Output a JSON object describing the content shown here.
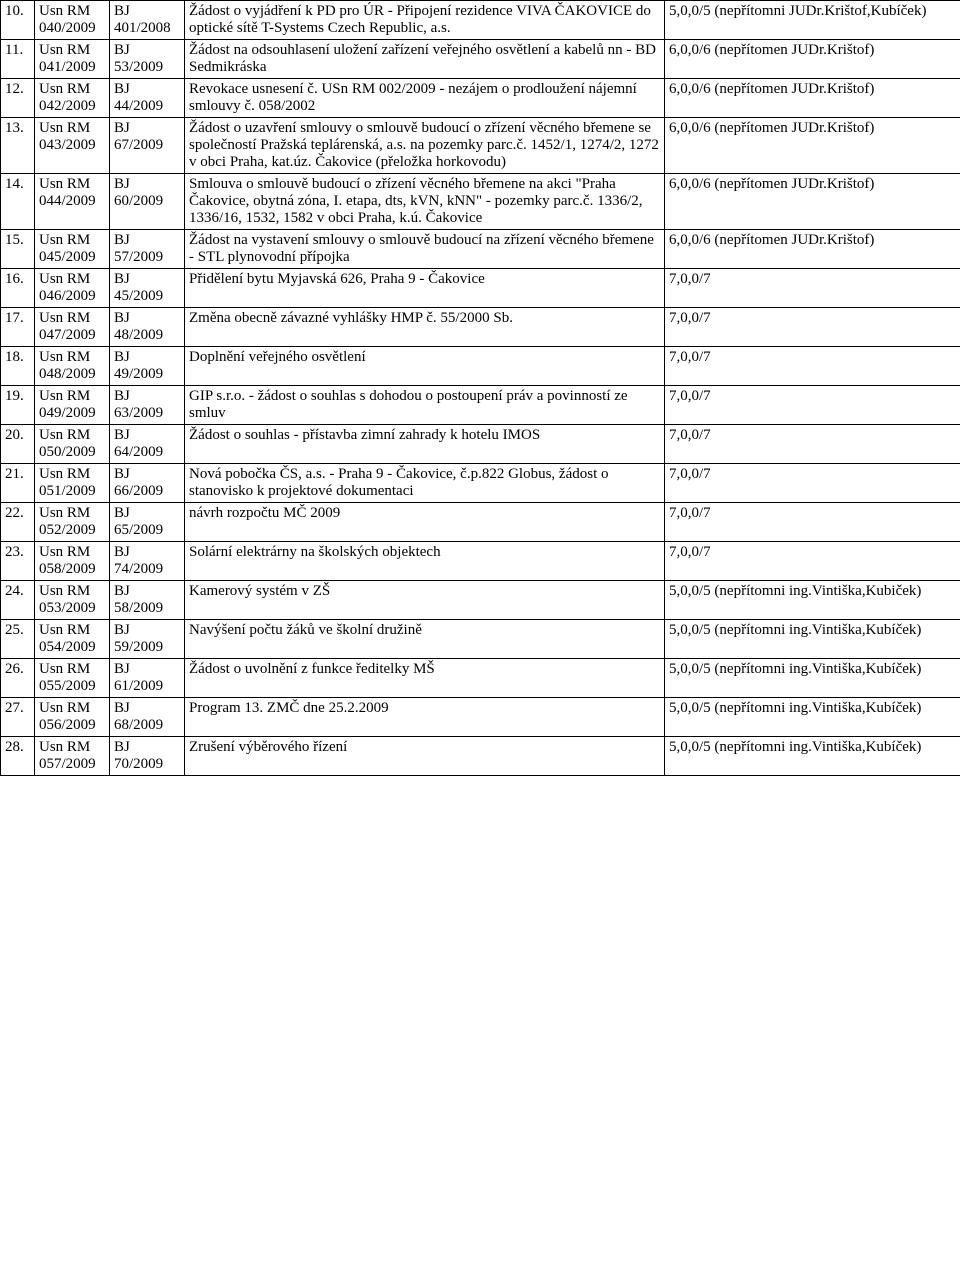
{
  "rows": [
    {
      "n": "10.",
      "usn1": "Usn RM",
      "usn2": "040/2009",
      "bj1": "BJ",
      "bj2": "401/2008",
      "desc": "Žádost o vyjádření k PD pro ÚR - Připojení rezidence VIVA ČAKOVICE do optické sítě T-Systems Czech Republic, a.s.",
      "res": "5,0,0/5 (nepřítomni JUDr.Krištof,Kubíček)"
    },
    {
      "n": "11.",
      "usn1": "Usn RM",
      "usn2": "041/2009",
      "bj1": "BJ",
      "bj2": "53/2009",
      "desc": "Žádost na odsouhlasení uložení zařízení veřejného osvětlení a kabelů nn - BD Sedmikráska",
      "res": "6,0,0/6 (nepřítomen JUDr.Krištof)"
    },
    {
      "n": "12.",
      "usn1": "Usn RM",
      "usn2": "042/2009",
      "bj1": "BJ",
      "bj2": "44/2009",
      "desc": "Revokace usnesení č. USn RM 002/2009 - nezájem o prodloužení nájemní smlouvy č. 058/2002",
      "res": "6,0,0/6 (nepřítomen JUDr.Krištof)"
    },
    {
      "n": "13.",
      "usn1": "Usn RM",
      "usn2": "043/2009",
      "bj1": "BJ",
      "bj2": "67/2009",
      "desc": "Žádost o uzavření smlouvy o smlouvě budoucí o zřízení věcného břemene se společností Pražská teplárenská, a.s. na pozemky parc.č. 1452/1, 1274/2, 1272 v obci Praha, kat.úz. Čakovice (přeložka horkovodu)",
      "res": "6,0,0/6 (nepřítomen JUDr.Krištof)"
    },
    {
      "n": "14.",
      "usn1": "Usn RM",
      "usn2": "044/2009",
      "bj1": "BJ",
      "bj2": "60/2009",
      "desc": "Smlouva o smlouvě budoucí o zřízení věcného břemene na akci \"Praha Čakovice, obytná zóna, I. etapa, dts, kVN, kNN\" - pozemky parc.č. 1336/2, 1336/16, 1532, 1582 v obci Praha, k.ú. Čakovice",
      "res": "6,0,0/6 (nepřítomen JUDr.Krištof)"
    },
    {
      "n": "15.",
      "usn1": "Usn RM",
      "usn2": "045/2009",
      "bj1": "BJ",
      "bj2": "57/2009",
      "desc": "Žádost na vystavení smlouvy o smlouvě budoucí na zřízení věcného břemene - STL plynovodní přípojka",
      "res": "6,0,0/6 (nepřítomen JUDr.Krištof)"
    },
    {
      "n": "16.",
      "usn1": "Usn RM",
      "usn2": "046/2009",
      "bj1": "BJ",
      "bj2": "45/2009",
      "desc": "Přidělení bytu Myjavská 626, Praha 9 - Čakovice",
      "res": "7,0,0/7"
    },
    {
      "n": "17.",
      "usn1": "Usn RM",
      "usn2": "047/2009",
      "bj1": "BJ",
      "bj2": "48/2009",
      "desc": "Změna obecně závazné vyhlášky HMP č. 55/2000 Sb.",
      "res": "7,0,0/7"
    },
    {
      "n": "18.",
      "usn1": "Usn RM",
      "usn2": "048/2009",
      "bj1": "BJ",
      "bj2": "49/2009",
      "desc": "Doplnění veřejného osvětlení",
      "res": "7,0,0/7"
    },
    {
      "n": "19.",
      "usn1": "Usn RM",
      "usn2": "049/2009",
      "bj1": "BJ",
      "bj2": "63/2009",
      "desc": "GIP s.r.o. - žádost o souhlas s dohodou o postoupení práv a povinností ze smluv",
      "res": "7,0,0/7"
    },
    {
      "n": "20.",
      "usn1": "Usn RM",
      "usn2": "050/2009",
      "bj1": "BJ",
      "bj2": "64/2009",
      "desc": "Žádost o souhlas - přístavba zimní zahrady k hotelu IMOS",
      "res": "7,0,0/7"
    },
    {
      "n": "21.",
      "usn1": "Usn RM",
      "usn2": "051/2009",
      "bj1": "BJ",
      "bj2": "66/2009",
      "desc": "Nová pobočka ČS, a.s. - Praha 9 - Čakovice, č.p.822 Globus, žádost o stanovisko k projektové dokumentaci",
      "res": "7,0,0/7"
    },
    {
      "n": "22.",
      "usn1": "Usn RM",
      "usn2": "052/2009",
      "bj1": "BJ",
      "bj2": "65/2009",
      "desc": "návrh rozpočtu MČ 2009",
      "res": "7,0,0/7"
    },
    {
      "n": "23.",
      "usn1": "Usn RM",
      "usn2": "058/2009",
      "bj1": "BJ",
      "bj2": "74/2009",
      "desc": "Solární elektrárny na školských objektech",
      "res": "7,0,0/7"
    },
    {
      "n": "24.",
      "usn1": "Usn RM",
      "usn2": "053/2009",
      "bj1": "BJ",
      "bj2": "58/2009",
      "desc": "Kamerový systém v ZŠ",
      "res": "5,0,0/5 (nepřítomni ing.Vintiška,Kubiček)"
    },
    {
      "n": "25.",
      "usn1": "Usn RM",
      "usn2": "054/2009",
      "bj1": "BJ",
      "bj2": "59/2009",
      "desc": "Navýšení počtu žáků ve školní družině",
      "res": "5,0,0/5 (nepřítomni ing.Vintiška,Kubíček)"
    },
    {
      "n": "26.",
      "usn1": "Usn RM",
      "usn2": "055/2009",
      "bj1": "BJ",
      "bj2": "61/2009",
      "desc": "Žádost o uvolnění z funkce ředitelky MŠ",
      "res": "5,0,0/5 (nepřítomni ing.Vintiška,Kubíček)"
    },
    {
      "n": "27.",
      "usn1": "Usn RM",
      "usn2": "056/2009",
      "bj1": "BJ",
      "bj2": "68/2009",
      "desc": "Program 13. ZMČ dne 25.2.2009",
      "res": "5,0,0/5 (nepřítomni ing.Vintiška,Kubíček)"
    },
    {
      "n": "28.",
      "usn1": "Usn RM",
      "usn2": "057/2009",
      "bj1": "BJ",
      "bj2": "70/2009",
      "desc": "Zrušení výběrového řízení",
      "res": "5,0,0/5 (nepřítomni ing.Vintiška,Kubíček)"
    }
  ]
}
